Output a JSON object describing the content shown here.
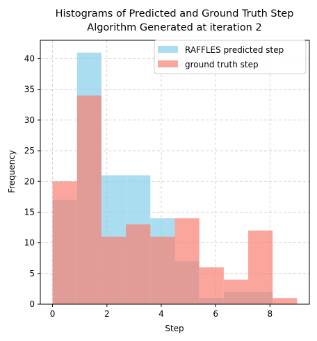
{
  "chart_data": {
    "type": "bar",
    "title_line1": "Histograms of Predicted and Ground Truth Step",
    "title_line2": "Algorithm Generated at iteration 2",
    "xlabel": "Step",
    "ylabel": "Frequency",
    "xlim": [
      -0.45,
      9.45
    ],
    "ylim": [
      0,
      43
    ],
    "xticks": [
      0,
      2,
      4,
      6,
      8
    ],
    "yticks": [
      0,
      5,
      10,
      15,
      20,
      25,
      30,
      35,
      40
    ],
    "grid": true,
    "legend_position": "top-right",
    "bin_edges": [
      0,
      0.9,
      1.8,
      2.7,
      3.6,
      4.5,
      5.4,
      6.3,
      7.2,
      8.1,
      9.0
    ],
    "series": [
      {
        "name": "RAFFLES predicted step",
        "color": "#87CEEB",
        "alpha": 0.7,
        "values": [
          17,
          41,
          21,
          21,
          14,
          7,
          1,
          2,
          2,
          0
        ]
      },
      {
        "name": "ground truth step",
        "color": "#FA8072",
        "alpha": 0.7,
        "values": [
          20,
          34,
          11,
          13,
          11,
          14,
          6,
          4,
          12,
          1
        ]
      }
    ]
  }
}
